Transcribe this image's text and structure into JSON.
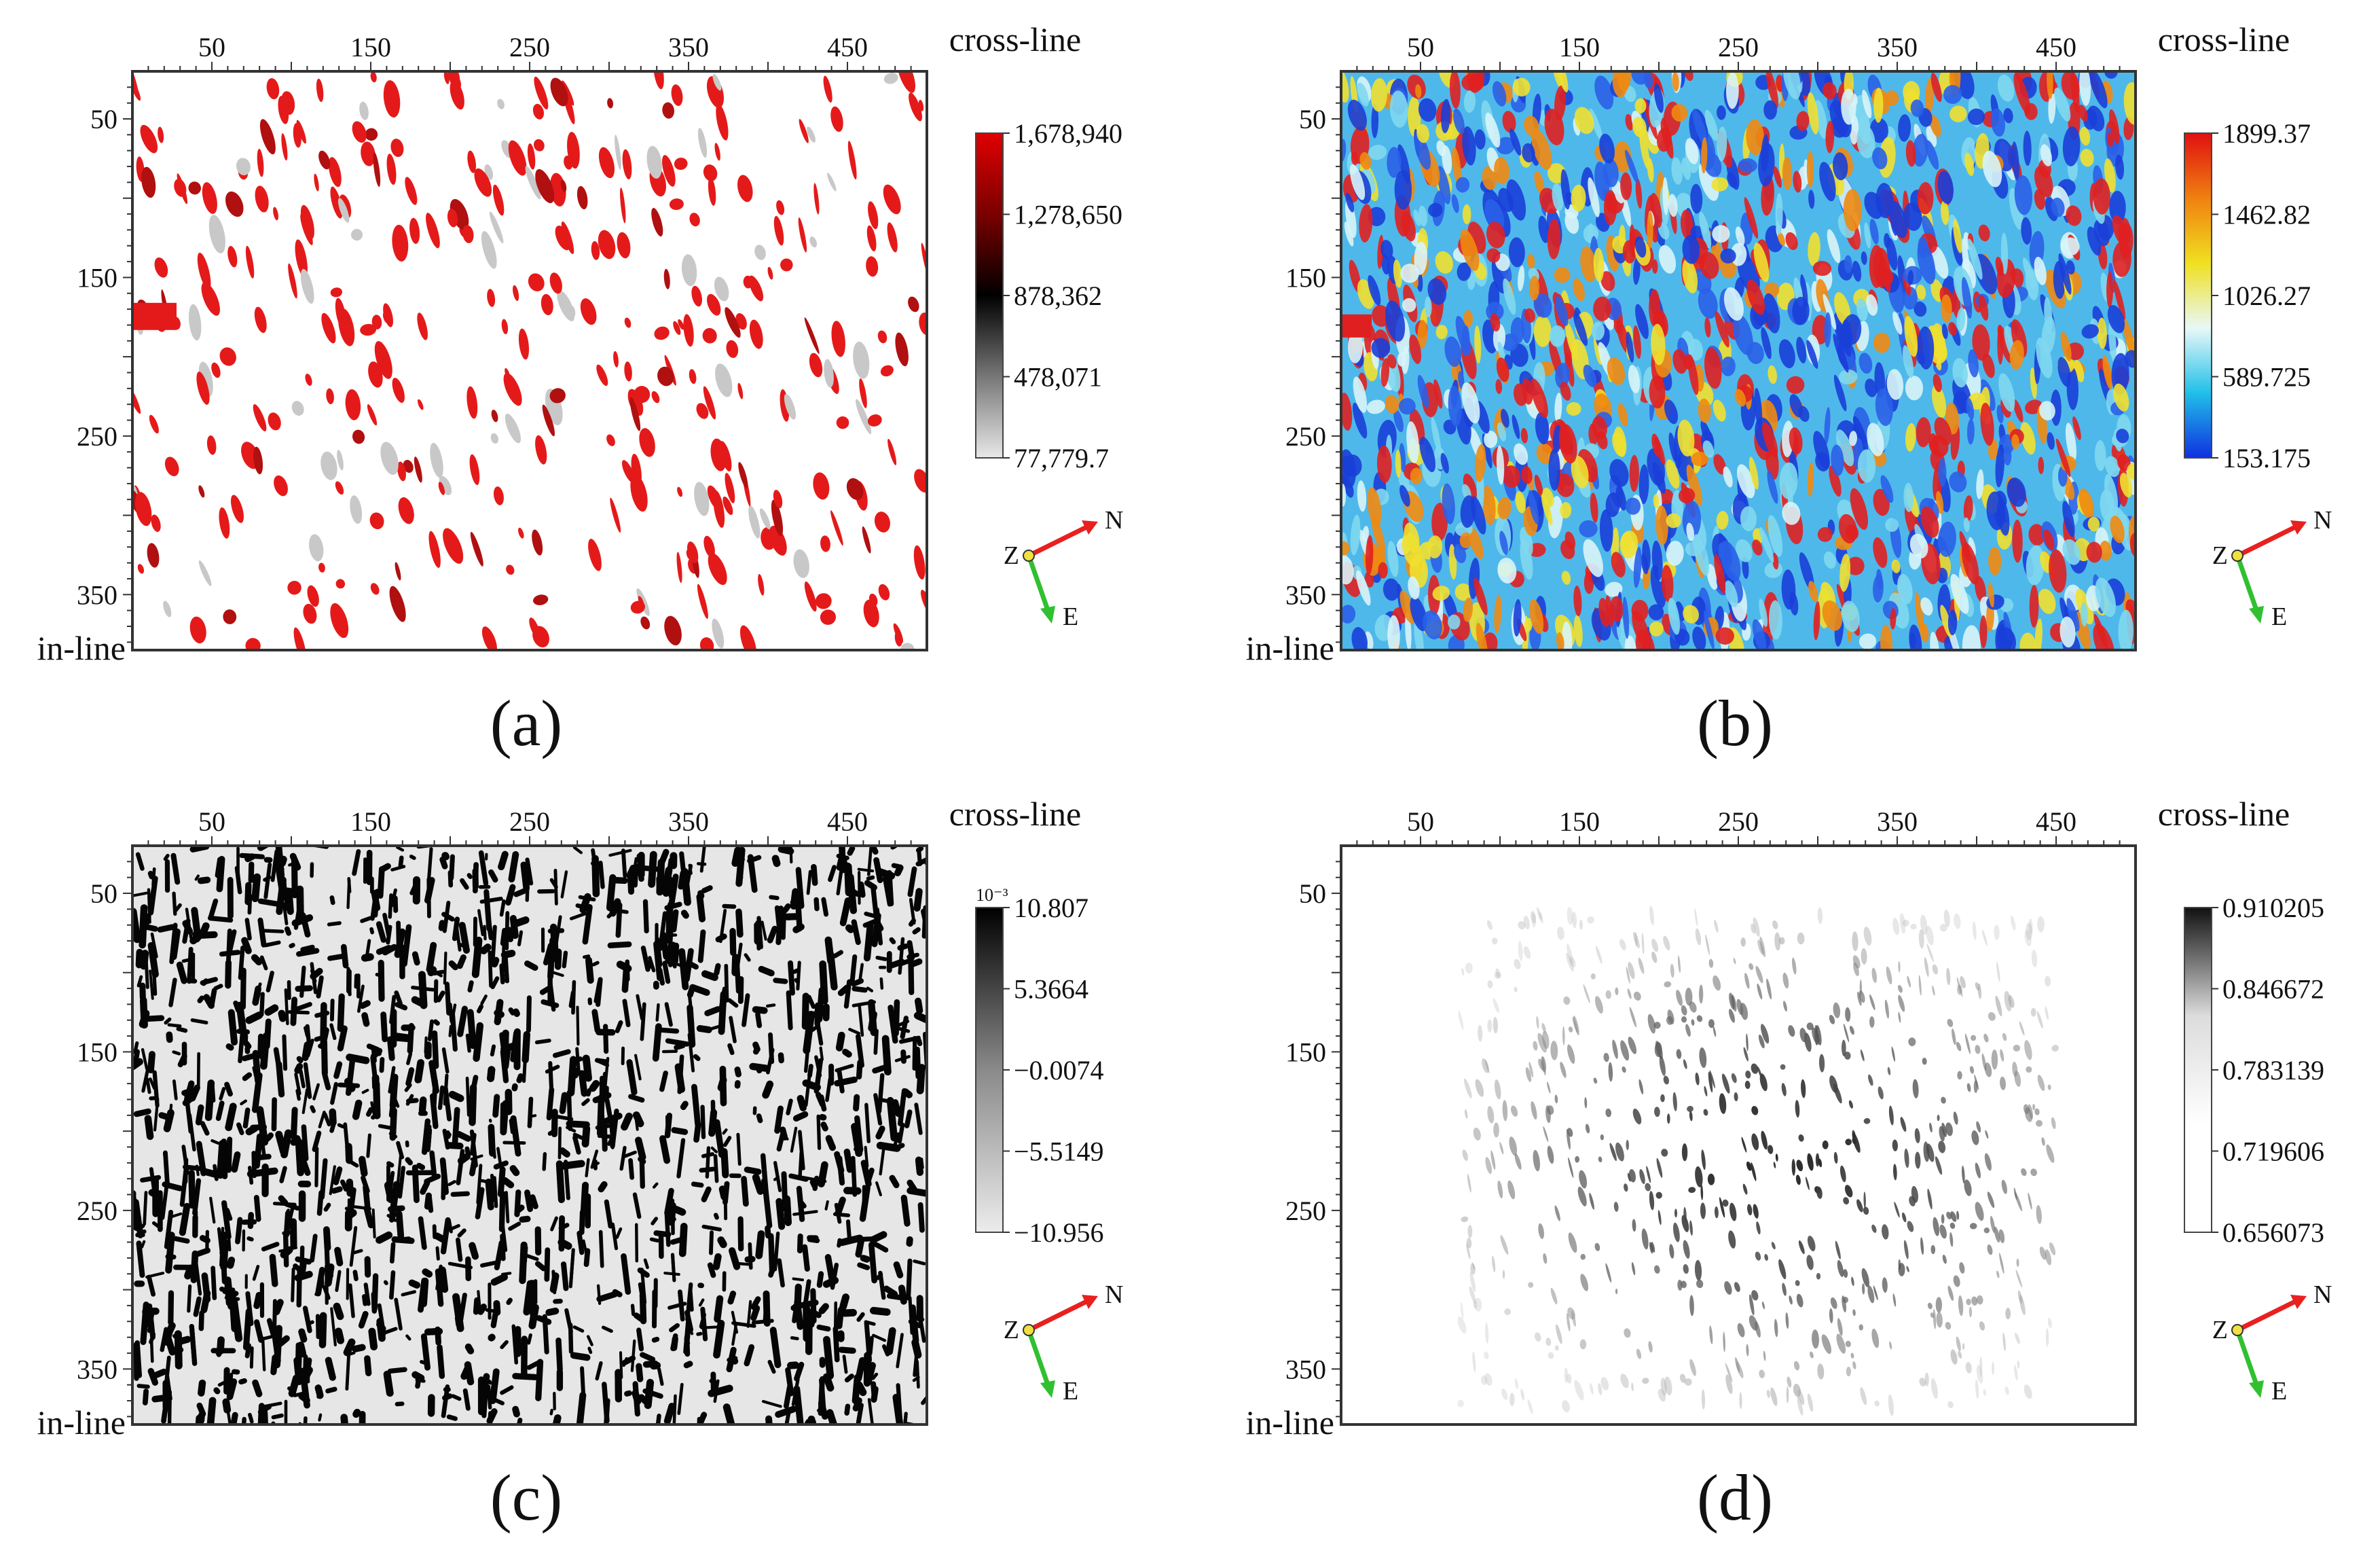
{
  "chart_data": [
    {
      "type": "heatmap",
      "panel_label": "(a)",
      "xlabel": "cross-line",
      "ylabel": "in-line",
      "x_ticks": [
        50,
        150,
        250,
        350,
        450
      ],
      "y_ticks": [
        50,
        150,
        250,
        350
      ],
      "xlim": [
        0,
        500
      ],
      "ylim": [
        20,
        385
      ],
      "colorbar": {
        "labels": [
          "1,678,940",
          "1,278,650",
          "878,362",
          "478,071",
          "77,779.7"
        ],
        "values": [
          1678940,
          1278650,
          878362,
          478071,
          77779.7
        ],
        "colors": [
          "#e8e8e8",
          "#777777",
          "#000000",
          "#7a0000",
          "#e00000"
        ],
        "exponent": ""
      },
      "map_style": "sparse-red"
    },
    {
      "type": "heatmap",
      "panel_label": "(b)",
      "xlabel": "cross-line",
      "ylabel": "in-line",
      "x_ticks": [
        50,
        150,
        250,
        350,
        450
      ],
      "y_ticks": [
        50,
        150,
        250,
        350
      ],
      "xlim": [
        0,
        500
      ],
      "ylim": [
        20,
        385
      ],
      "colorbar": {
        "labels": [
          "1899.37",
          "1462.82",
          "1026.27",
          "589.725",
          "153.175"
        ],
        "values": [
          1899.37,
          1462.82,
          1026.27,
          589.725,
          153.175
        ],
        "colors": [
          "#1030e0",
          "#20c0e8",
          "#e8f8f8",
          "#f0e020",
          "#f08010",
          "#e01010"
        ],
        "exponent": ""
      },
      "map_style": "jet"
    },
    {
      "type": "heatmap",
      "panel_label": "(c)",
      "xlabel": "cross-line",
      "ylabel": "in-line",
      "x_ticks": [
        50,
        150,
        250,
        350,
        450
      ],
      "y_ticks": [
        50,
        150,
        250,
        350
      ],
      "xlim": [
        0,
        500
      ],
      "ylim": [
        20,
        385
      ],
      "colorbar": {
        "labels": [
          "10.807",
          "5.3664",
          "−0.0074",
          "−5.5149",
          "−10.956"
        ],
        "values": [
          10.807,
          5.3664,
          -0.0074,
          -5.5149,
          -10.956
        ],
        "colors": [
          "#ececec",
          "#8a8a8a",
          "#000000"
        ],
        "exponent": "10⁻³"
      },
      "map_style": "binary-black"
    },
    {
      "type": "heatmap",
      "panel_label": "(d)",
      "xlabel": "cross-line",
      "ylabel": "in-line",
      "x_ticks": [
        50,
        150,
        250,
        350,
        450
      ],
      "y_ticks": [
        50,
        150,
        250,
        350
      ],
      "xlim": [
        0,
        500
      ],
      "ylim": [
        20,
        385
      ],
      "colorbar": {
        "labels": [
          "0.910205",
          "0.846672",
          "0.783139",
          "0.719606",
          "0.656073"
        ],
        "values": [
          0.910205,
          0.846672,
          0.783139,
          0.719606,
          0.656073
        ],
        "colors": [
          "#ffffff",
          "#ffffff",
          "#dcdcdc",
          "#111111"
        ],
        "exponent": ""
      },
      "map_style": "faint-gray"
    }
  ],
  "compass": {
    "z_label": "Z",
    "n_label": "N",
    "e_label": "E",
    "n_color": "#e82020",
    "e_color": "#30c030",
    "z_color": "#f0e040"
  }
}
